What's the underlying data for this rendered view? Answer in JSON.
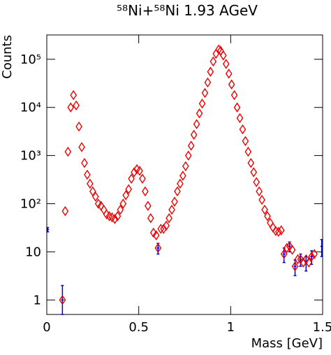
{
  "chart_data": {
    "type": "scatter",
    "title": "⁵⁸Ni+⁵⁸Ni 1.93 AGeV",
    "x_label": "Mass [GeV]",
    "y_label": "Counts",
    "log_y": true,
    "xlim": [
      0,
      1.5
    ],
    "ylim": [
      0.5,
      320000
    ],
    "xticks": [
      0,
      0.5,
      1,
      1.5
    ],
    "yticks": [
      1,
      10,
      {
        "value": 100,
        "label": "10²"
      },
      {
        "value": 1000,
        "label": "10³"
      },
      {
        "value": 10000,
        "label": "10⁴"
      },
      {
        "value": 100000,
        "label": "10⁵"
      }
    ],
    "series": [
      {
        "color": "#ee0000",
        "marker": "diamond",
        "x": [
          0.085,
          0.1,
          0.115,
          0.13,
          0.145,
          0.16,
          0.175,
          0.19,
          0.205,
          0.22,
          0.235,
          0.25,
          0.265,
          0.28,
          0.295,
          0.31,
          0.325,
          0.34,
          0.355,
          0.37,
          0.385,
          0.4,
          0.415,
          0.43,
          0.445,
          0.46,
          0.475,
          0.49,
          0.505,
          0.52,
          0.535,
          0.55,
          0.565,
          0.58,
          0.595,
          0.605,
          0.62,
          0.635,
          0.65,
          0.665,
          0.68,
          0.695,
          0.71,
          0.725,
          0.74,
          0.755,
          0.77,
          0.785,
          0.8,
          0.815,
          0.83,
          0.845,
          0.86,
          0.875,
          0.89,
          0.905,
          0.92,
          0.935,
          0.945,
          0.96,
          0.975,
          0.99,
          1.005,
          1.02,
          1.035,
          1.05,
          1.065,
          1.08,
          1.095,
          1.11,
          1.125,
          1.14,
          1.155,
          1.17,
          1.185,
          1.2,
          1.215,
          1.23,
          1.245,
          1.26,
          1.275,
          1.29,
          1.305,
          1.32,
          1.335,
          1.35,
          1.365,
          1.38,
          1.395,
          1.41,
          1.425,
          1.44,
          1.455
        ],
        "values": [
          1,
          70,
          1200,
          10000,
          18000,
          11000,
          4000,
          1500,
          700,
          400,
          260,
          180,
          140,
          100,
          90,
          75,
          60,
          55,
          52,
          48,
          55,
          75,
          100,
          150,
          200,
          330,
          450,
          520,
          480,
          330,
          180,
          90,
          50,
          25,
          22,
          12,
          30,
          30,
          35,
          50,
          75,
          110,
          180,
          260,
          380,
          600,
          1000,
          1600,
          2700,
          4500,
          7500,
          12000,
          20000,
          33000,
          55000,
          90000,
          130000,
          160000,
          150000,
          120000,
          80000,
          50000,
          30000,
          18000,
          10000,
          6000,
          3500,
          2000,
          1200,
          700,
          450,
          280,
          180,
          120,
          75,
          55,
          40,
          32,
          27,
          26,
          28,
          9,
          12,
          13,
          11,
          5,
          7,
          7,
          6,
          7,
          6,
          8,
          9
        ]
      },
      {
        "color": "#0000cc",
        "marker": "errorbar",
        "x": [
          0.005,
          0.085,
          0.605,
          1.29,
          1.32,
          1.35,
          1.38,
          1.41,
          1.44,
          1.495
        ],
        "values": [
          29,
          1,
          12,
          9,
          13,
          5,
          7,
          6,
          8,
          13
        ],
        "errors": [
          3,
          1,
          3,
          3,
          3,
          1.8,
          2,
          2,
          2.5,
          5
        ]
      }
    ]
  }
}
